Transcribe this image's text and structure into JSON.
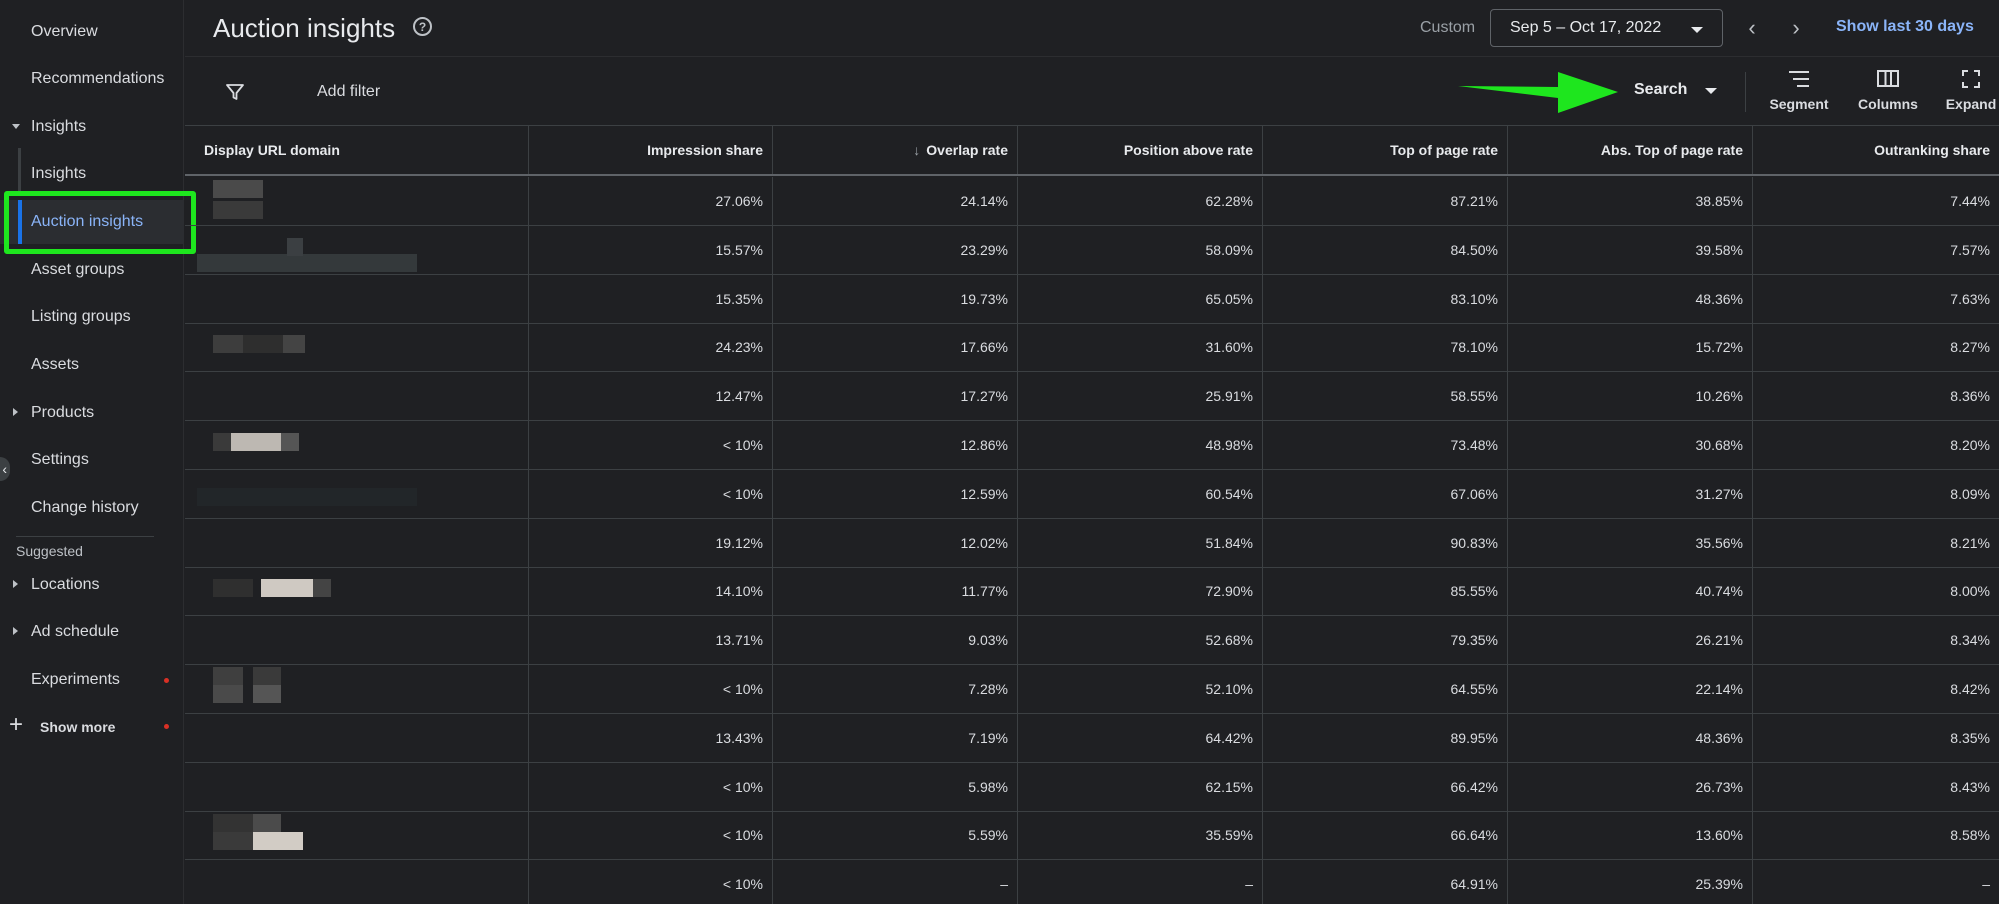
{
  "sidebar": {
    "items": [
      {
        "label": "Overview"
      },
      {
        "label": "Recommendations"
      },
      {
        "label": "Insights"
      },
      {
        "label": "Insights"
      },
      {
        "label": "Auction insights"
      },
      {
        "label": "Asset groups"
      },
      {
        "label": "Listing groups"
      },
      {
        "label": "Assets"
      },
      {
        "label": "Products"
      },
      {
        "label": "Settings"
      },
      {
        "label": "Change history"
      },
      {
        "label": "Locations"
      },
      {
        "label": "Ad schedule"
      },
      {
        "label": "Experiments"
      }
    ],
    "suggested_label": "Suggested",
    "show_more_label": "Show more",
    "collapse_icon": "chevron-left-icon"
  },
  "header": {
    "title": "Auction insights",
    "help_icon": "?",
    "custom_label": "Custom",
    "date_range": "Sep 5 – Oct 17, 2022",
    "prev_icon": "‹",
    "next_icon": "›",
    "show_last_label": "Show last 30 days"
  },
  "toolbar": {
    "add_filter_label": "Add filter",
    "search_label": "Search",
    "segment_label": "Segment",
    "columns_label": "Columns",
    "expand_label": "Expand"
  },
  "table": {
    "columns": [
      "Display URL domain",
      "Impression share",
      "Overlap rate",
      "Position above rate",
      "Top of page rate",
      "Abs. Top of page rate",
      "Outranking share"
    ],
    "sort_icon": "↓",
    "rows": [
      [
        "27.06%",
        "24.14%",
        "62.28%",
        "87.21%",
        "38.85%",
        "7.44%"
      ],
      [
        "15.57%",
        "23.29%",
        "58.09%",
        "84.50%",
        "39.58%",
        "7.57%"
      ],
      [
        "15.35%",
        "19.73%",
        "65.05%",
        "83.10%",
        "48.36%",
        "7.63%"
      ],
      [
        "24.23%",
        "17.66%",
        "31.60%",
        "78.10%",
        "15.72%",
        "8.27%"
      ],
      [
        "12.47%",
        "17.27%",
        "25.91%",
        "58.55%",
        "10.26%",
        "8.36%"
      ],
      [
        "< 10%",
        "12.86%",
        "48.98%",
        "73.48%",
        "30.68%",
        "8.20%"
      ],
      [
        "< 10%",
        "12.59%",
        "60.54%",
        "67.06%",
        "31.27%",
        "8.09%"
      ],
      [
        "19.12%",
        "12.02%",
        "51.84%",
        "90.83%",
        "35.56%",
        "8.21%"
      ],
      [
        "14.10%",
        "11.77%",
        "72.90%",
        "85.55%",
        "40.74%",
        "8.00%"
      ],
      [
        "13.71%",
        "9.03%",
        "52.68%",
        "79.35%",
        "26.21%",
        "8.34%"
      ],
      [
        "< 10%",
        "7.28%",
        "52.10%",
        "64.55%",
        "22.14%",
        "8.42%"
      ],
      [
        "13.43%",
        "7.19%",
        "64.42%",
        "89.95%",
        "48.36%",
        "8.35%"
      ],
      [
        "< 10%",
        "5.98%",
        "62.15%",
        "66.42%",
        "26.73%",
        "8.43%"
      ],
      [
        "< 10%",
        "5.59%",
        "35.59%",
        "66.64%",
        "13.60%",
        "8.58%"
      ],
      [
        "< 10%",
        "–",
        "–",
        "64.91%",
        "25.39%",
        "–"
      ]
    ]
  },
  "colors": {
    "accent": "#8ab4f8",
    "highlight": "#1ee61e",
    "background": "#1f2023"
  }
}
